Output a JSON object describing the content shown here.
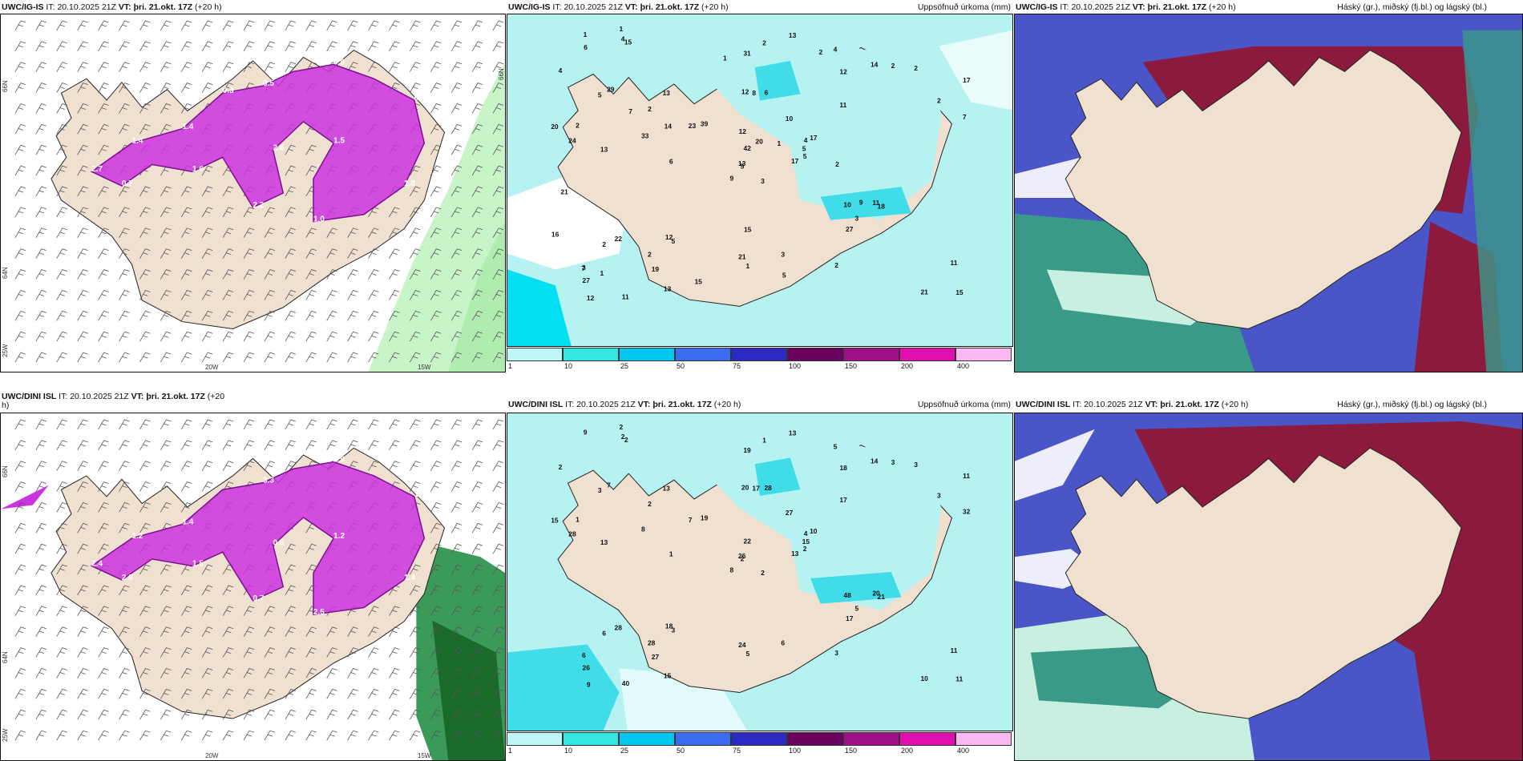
{
  "panels": {
    "tl": {
      "model": "UWC/IG-IS",
      "it_label": "IT:",
      "it": "20.10.2025 21Z",
      "vt_label": "VT:",
      "vt": "þri. 21.okt. 17Z",
      "lead": "(+20 h)",
      "right": ""
    },
    "tm": {
      "model": "UWC/IG-IS",
      "it_label": "IT:",
      "it": "20.10.2025 21Z",
      "vt_label": "VT:",
      "vt": "þri. 21.okt. 17Z",
      "lead": "(+20 h)",
      "right": "Uppsöfnuð úrkoma (mm)"
    },
    "tr": {
      "model": "UWC/IG-IS",
      "it_label": "IT:",
      "it": "20.10.2025 21Z",
      "vt_label": "VT:",
      "vt": "þri. 21.okt. 17Z",
      "lead": "(+20 h)",
      "right": "Háský (gr.), miðský (fj.bl.) og lágský (bl.)"
    },
    "bl": {
      "model": "UWC/DINI ISL",
      "it_label": "IT:",
      "it": "20.10.2025 21Z",
      "vt_label": "VT:",
      "vt": "þri. 21.okt. 17Z",
      "lead": "(+20",
      "lead2": "h)",
      "right": ""
    },
    "bm": {
      "model": "UWC/DINI ISL",
      "it_label": "IT:",
      "it": "20.10.2025 21Z",
      "vt_label": "VT:",
      "vt": "þri. 21.okt. 17Z",
      "lead": "(+20 h)",
      "right": "Uppsöfnuð úrkoma (mm)"
    },
    "br": {
      "model": "UWC/DINI ISL",
      "it_label": "IT:",
      "it": "20.10.2025 21Z",
      "vt_label": "VT:",
      "vt": "þri. 21.okt. 17Z",
      "lead": "(+20 h)",
      "right": "Háský (gr.), miðský (fj.bl.) og lágský (bl.)"
    }
  },
  "axes": {
    "lat_labels": [
      "66N",
      "64N",
      "25W"
    ],
    "lon_labels": [
      "20W",
      "15W"
    ],
    "lat_labels_right": [
      "66N",
      "64N"
    ]
  },
  "colorbar": {
    "ticks": [
      "1",
      "10",
      "25",
      "50",
      "75",
      "100",
      "150",
      "200",
      "400"
    ],
    "colors": [
      "#bff7f7",
      "#33e5e5",
      "#00c8f0",
      "#3a6cf0",
      "#2b2bc4",
      "#6a0060",
      "#a0108a",
      "#e010b0",
      "#f8b8f0"
    ]
  },
  "colors": {
    "land": "#f0e0d0",
    "sea_precip": "#b6f2f2",
    "precip_mid": "#40dce8",
    "purple": "#cc33e0",
    "dark_red": "#8b1a3c",
    "blue": "#4a55c8",
    "green_low": "#3a9a88",
    "green_light": "#c8f5c8"
  },
  "precip_labels_top": [
    "3",
    "5",
    "5",
    "3",
    "4",
    "5",
    "4",
    "6",
    "12",
    "17",
    "15",
    "15",
    "13",
    "17",
    "9",
    "11",
    "11",
    "12",
    "10",
    "22",
    "39",
    "27",
    "19",
    "8",
    "17",
    "18",
    "29",
    "31",
    "24",
    "10",
    "7",
    "13",
    "21",
    "42",
    "13",
    "14",
    "12",
    "21",
    "11",
    "11",
    "13",
    "23",
    "33",
    "27",
    "13",
    "20",
    "5",
    "12",
    "1",
    "5",
    "2",
    "2",
    "4",
    "3",
    "2",
    "2",
    "4",
    "1",
    "3",
    "2",
    "2",
    "6",
    "2",
    "2",
    "2",
    "1",
    "2",
    "1",
    "20",
    "16",
    "15",
    "15",
    "9",
    "14",
    "7",
    "6",
    "7",
    "21",
    "12",
    "5",
    "1",
    "1",
    "2"
  ],
  "precip_labels_bottom": [
    "2",
    "3",
    "2",
    "6",
    "4",
    "3",
    "5",
    "28",
    "18",
    "13",
    "2",
    "11",
    "13",
    "11",
    "8",
    "17",
    "40",
    "20",
    "27",
    "28",
    "19",
    "26",
    "27",
    "17",
    "10",
    "21",
    "7",
    "19",
    "28",
    "48",
    "32",
    "26",
    "24",
    "22",
    "13",
    "14",
    "18",
    "10",
    "11",
    "20",
    "13",
    "7",
    "8",
    "17",
    "15",
    "15",
    "15",
    "9",
    "5",
    "2",
    "6",
    "3",
    "2",
    "5",
    "3",
    "28",
    "2",
    "9",
    "6",
    "3",
    "1",
    "1",
    "1",
    "2",
    "3",
    "2"
  ],
  "wind_vals_tl": [
    "2.7",
    "1.4",
    "0.5",
    "0.9",
    "0.7",
    "1.8",
    "1.0",
    "1.5",
    "2.6",
    "2.2",
    "1.6",
    "0.7",
    "1.4",
    "0.3"
  ],
  "wind_vals_bl": [
    "2.4",
    "1.4",
    "3.3",
    "2.9",
    "1.9",
    "1.4",
    "2.5",
    "1.2",
    "0.6",
    "0.7",
    "1.5",
    "2.8",
    "1.2"
  ]
}
